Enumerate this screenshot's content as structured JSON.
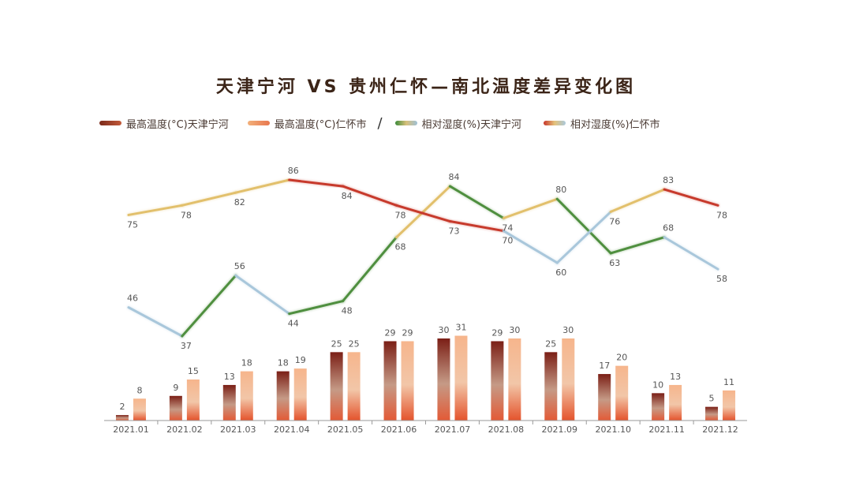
{
  "title": "天津宁河 VS 贵州仁怀—南北温度差异变化图",
  "legend": {
    "s1": "最高温度(°C)天津宁河",
    "s2": "最高温度(°C)仁怀市",
    "s3": "相对湿度(%)天津宁河",
    "s4": "相对湿度(%)仁怀市"
  },
  "colors": {
    "tianjin_temp": "#8b2b1f",
    "renhuai_temp": "#ef8a5e",
    "tianjin_humidity": "#4f8f3f",
    "renhuai_humidity": "#c73a2c",
    "humidity_light": "#a9c7db",
    "humidity_mid": "#e2c06c"
  },
  "chart_data": {
    "type": "bar+line",
    "categories": [
      "2021.01",
      "2021.02",
      "2021.03",
      "2021.04",
      "2021.05",
      "2021.06",
      "2021.07",
      "2021.08",
      "2021.09",
      "2021.10",
      "2021.11",
      "2021.12"
    ],
    "series": [
      {
        "name": "最高温度(°C)天津宁河",
        "type": "bar",
        "values": [
          2,
          9,
          13,
          18,
          25,
          29,
          30,
          29,
          25,
          17,
          10,
          5
        ]
      },
      {
        "name": "最高温度(°C)仁怀市",
        "type": "bar",
        "values": [
          8,
          15,
          18,
          19,
          25,
          29,
          31,
          30,
          30,
          20,
          13,
          11
        ]
      },
      {
        "name": "相对湿度(%)天津宁河",
        "type": "line",
        "values": [
          46,
          37,
          56,
          44,
          48,
          68,
          84,
          74,
          80,
          63,
          68,
          58
        ]
      },
      {
        "name": "相对湿度(%)仁怀市",
        "type": "line",
        "values": [
          75,
          78,
          82,
          86,
          84,
          78,
          73,
          70,
          60,
          76,
          83,
          78
        ]
      }
    ],
    "grid": false,
    "legend_position": "top"
  }
}
